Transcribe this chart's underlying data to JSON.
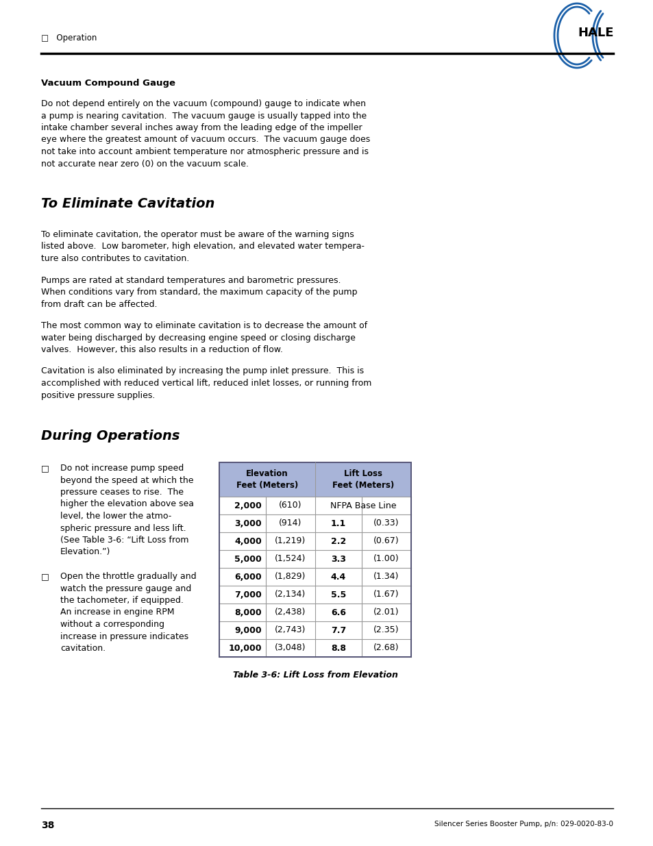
{
  "page_width": 9.54,
  "page_height": 12.35,
  "bg_color": "#ffffff",
  "header_label": "□   Operation",
  "footer_page_num": "38",
  "footer_right_text": "Silencer Series Booster Pump, p/n: 029-0020-83-0",
  "vacuum_gauge_title": "Vacuum Compound Gauge",
  "vacuum_gauge_body": "Do not depend entirely on the vacuum (compound) gauge to indicate when\na pump is nearing cavitation.  The vacuum gauge is usually tapped into the\nintake chamber several inches away from the leading edge of the impeller\neye where the greatest amount of vacuum occurs.  The vacuum gauge does\nnot take into account ambient temperature nor atmospheric pressure and is\nnot accurate near zero (0) on the vacuum scale.",
  "eliminate_title": "To Eliminate Cavitation",
  "eliminate_p1": "To eliminate cavitation, the operator must be aware of the warning signs\nlisted above.  Low barometer, high elevation, and elevated water tempera-\nture also contributes to cavitation.",
  "eliminate_p2": "Pumps are rated at standard temperatures and barometric pressures.\nWhen conditions vary from standard, the maximum capacity of the pump\nfrom draft can be affected.",
  "eliminate_p3": "The most common way to eliminate cavitation is to decrease the amount of\nwater being discharged by decreasing engine speed or closing discharge\nvalves.  However, this also results in a reduction of flow.",
  "eliminate_p4": "Cavitation is also eliminated by increasing the pump inlet pressure.  This is\naccomplished with reduced vertical lift, reduced inlet losses, or running from\npositive pressure supplies.",
  "during_title": "During Operations",
  "bullet1_lines": [
    "Do not increase pump speed",
    "beyond the speed at which the",
    "pressure ceases to rise.  The",
    "higher the elevation above sea",
    "level, the lower the atmo-",
    "spheric pressure and less lift.",
    "(See Table 3-6: “Lift Loss from",
    "Elevation.”)"
  ],
  "bullet2_lines": [
    "Open the throttle gradually and",
    "watch the pressure gauge and",
    "the tachometer, if equipped.",
    "An increase in engine RPM",
    "without a corresponding",
    "increase in pressure indicates",
    "cavitation."
  ],
  "table_caption": "Table 3-6: Lift Loss from Elevation",
  "table_header_bg": "#a8b4d8",
  "table_data": [
    [
      "2,000",
      "(610)",
      "NFPA Base Line",
      ""
    ],
    [
      "3,000",
      "(914)",
      "1.1",
      "(0.33)"
    ],
    [
      "4,000",
      "(1,219)",
      "2.2",
      "(0.67)"
    ],
    [
      "5,000",
      "(1,524)",
      "3.3",
      "(1.00)"
    ],
    [
      "6,000",
      "(1,829)",
      "4.4",
      "(1.34)"
    ],
    [
      "7,000",
      "(2,134)",
      "5.5",
      "(1.67)"
    ],
    [
      "8,000",
      "(2,438)",
      "6.6",
      "(2.01)"
    ],
    [
      "9,000",
      "(2,743)",
      "7.7",
      "(2.35)"
    ],
    [
      "10,000",
      "(3,048)",
      "8.8",
      "(2.68)"
    ]
  ],
  "hale_blue": "#1a5fa8"
}
